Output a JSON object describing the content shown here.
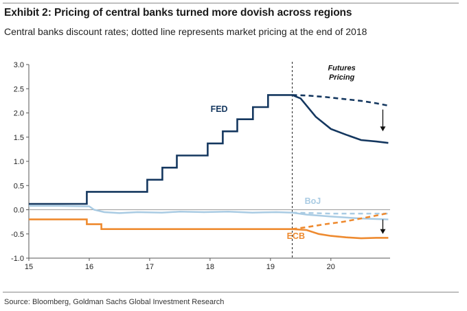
{
  "header": {
    "title": "Exhibit 2: Pricing of central banks turned more dovish across regions",
    "subtitle": "Central banks discount rates; dotted line represents market pricing at the end of 2018"
  },
  "footer": {
    "source": "Source: Bloomberg, Goldman Sachs Global Investment Research"
  },
  "colors": {
    "fed": "#14375f",
    "boj": "#a9cbe3",
    "ecb": "#ee8a2f",
    "axis": "#555555",
    "divider": "#222222"
  },
  "chart_data": {
    "type": "line",
    "title": "",
    "xlabel": "",
    "ylabel": "",
    "xlim": [
      2015.0,
      2020.98
    ],
    "ylim": [
      -1.0,
      3.0
    ],
    "x_ticks": [
      2015,
      2016,
      2017,
      2018,
      2019,
      2020
    ],
    "x_tick_labels": [
      "15",
      "16",
      "17",
      "18",
      "19",
      "20"
    ],
    "y_ticks": [
      3.0,
      2.5,
      2.0,
      1.5,
      1.0,
      0.5,
      0.0,
      -0.5,
      -1.0
    ],
    "y_tick_labels": [
      "3.0",
      "2.5",
      "2.0",
      "1.5",
      "1.0",
      "0.5",
      "0.0",
      "-0.5",
      "-1.0"
    ],
    "grid": false,
    "divider_x": 2019.36,
    "annotations": [
      {
        "text": "Futures",
        "x": 2020.18,
        "y": 2.88
      },
      {
        "text": "Pricing",
        "x": 2020.18,
        "y": 2.69
      }
    ],
    "series": [
      {
        "name": "FED",
        "label_pos": {
          "x": 2018.15,
          "y": 2.02
        },
        "x": [
          2015.0,
          2015.96,
          2015.96,
          2016.96,
          2016.96,
          2017.21,
          2017.21,
          2017.45,
          2017.45,
          2017.96,
          2017.96,
          2018.21,
          2018.21,
          2018.45,
          2018.45,
          2018.71,
          2018.71,
          2018.96,
          2018.96,
          2019.36
        ],
        "y": [
          0.12,
          0.12,
          0.37,
          0.37,
          0.62,
          0.62,
          0.87,
          0.87,
          1.12,
          1.12,
          1.37,
          1.37,
          1.62,
          1.62,
          1.87,
          1.87,
          2.12,
          2.12,
          2.37,
          2.37
        ]
      },
      {
        "name": "FED current pricing",
        "x": [
          2019.36,
          2019.5,
          2019.75,
          2020.0,
          2020.25,
          2020.5,
          2020.75,
          2020.95
        ],
        "y": [
          2.37,
          2.3,
          1.92,
          1.67,
          1.55,
          1.44,
          1.41,
          1.38
        ]
      },
      {
        "name": "FED end-2018 pricing",
        "style": "dotted",
        "x": [
          2019.36,
          2019.6,
          2019.9,
          2020.2,
          2020.5,
          2020.75,
          2020.95
        ],
        "y": [
          2.37,
          2.36,
          2.33,
          2.29,
          2.25,
          2.2,
          2.15
        ]
      },
      {
        "name": "BoJ",
        "label_pos": {
          "x": 2019.7,
          "y": 0.12
        },
        "x": [
          2015.0,
          2015.5,
          2016.0,
          2016.08,
          2016.25,
          2016.5,
          2016.8,
          2017.2,
          2017.5,
          2017.9,
          2018.3,
          2018.7,
          2019.1,
          2019.36,
          2019.6,
          2020.0,
          2020.5,
          2020.95
        ],
        "y": [
          0.08,
          0.08,
          0.07,
          0.0,
          -0.05,
          -0.07,
          -0.05,
          -0.06,
          -0.04,
          -0.05,
          -0.04,
          -0.06,
          -0.05,
          -0.06,
          -0.1,
          -0.14,
          -0.18,
          -0.2
        ]
      },
      {
        "name": "BoJ end-2018 pricing",
        "style": "dotted",
        "x": [
          2019.36,
          2019.7,
          2020.0,
          2020.4,
          2020.95
        ],
        "y": [
          -0.06,
          -0.07,
          -0.08,
          -0.08,
          -0.08
        ]
      },
      {
        "name": "ECB",
        "label_pos": {
          "x": 2019.42,
          "y": -0.6
        },
        "x": [
          2015.0,
          2015.96,
          2015.96,
          2016.2,
          2016.2,
          2019.36
        ],
        "y": [
          -0.2,
          -0.2,
          -0.3,
          -0.3,
          -0.4,
          -0.4
        ]
      },
      {
        "name": "ECB current pricing",
        "x": [
          2019.36,
          2019.6,
          2019.8,
          2020.0,
          2020.25,
          2020.5,
          2020.75,
          2020.95
        ],
        "y": [
          -0.4,
          -0.42,
          -0.5,
          -0.54,
          -0.57,
          -0.59,
          -0.58,
          -0.58
        ]
      },
      {
        "name": "ECB end-2018 pricing",
        "style": "dotted",
        "x": [
          2019.36,
          2019.6,
          2019.9,
          2020.2,
          2020.5,
          2020.75,
          2020.95
        ],
        "y": [
          -0.4,
          -0.36,
          -0.3,
          -0.25,
          -0.18,
          -0.12,
          -0.07
        ]
      }
    ],
    "arrows": [
      {
        "name": "fed-shift-arrow",
        "x": 2020.86,
        "y_from": 2.07,
        "y_to": 1.62
      },
      {
        "name": "ecb-shift-arrow",
        "x": 2020.86,
        "y_from": -0.2,
        "y_to": -0.5
      }
    ]
  }
}
